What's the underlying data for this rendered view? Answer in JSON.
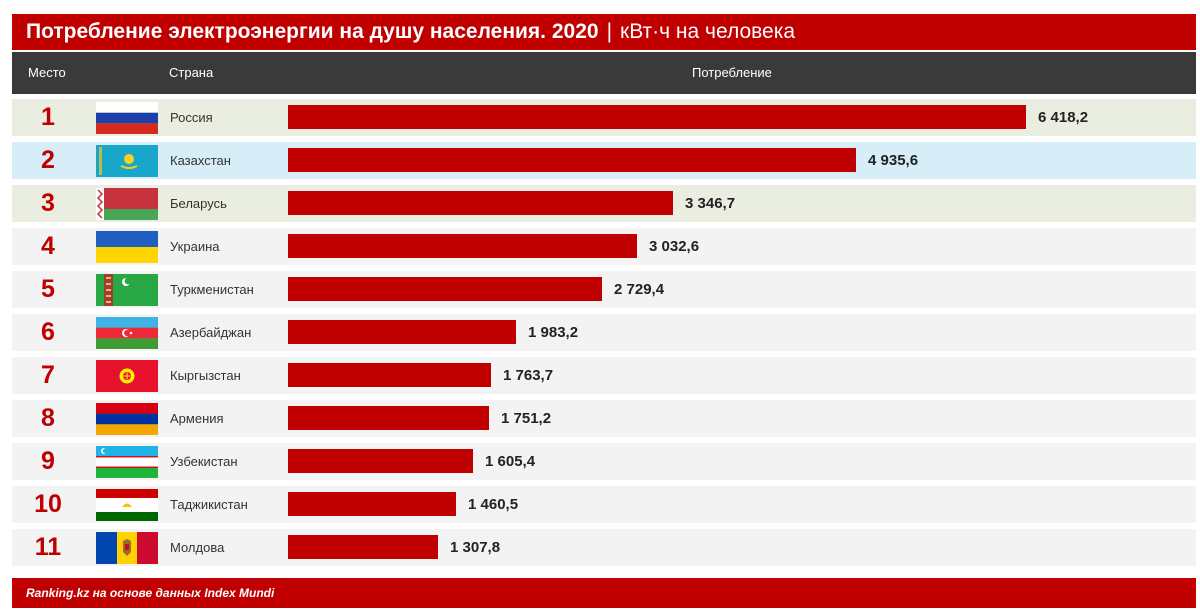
{
  "title": {
    "main": "Потребление электроэнергии на душу населения. 2020",
    "separator": "|",
    "unit": "кВт·ч на человека"
  },
  "header": {
    "rank": "Место",
    "country": "Страна",
    "value": "Потребление"
  },
  "footer": "Ranking.kz на основе данных Index Mundi",
  "colors": {
    "accent": "#c00000",
    "header_bg": "#3a3a3a",
    "row_green": "#e9eee0",
    "row_blue": "#d7edf7",
    "row_grey": "#f3f3f3"
  },
  "chart_data": {
    "type": "bar",
    "orientation": "horizontal",
    "title": "Потребление электроэнергии на душу населения. 2020",
    "unit": "кВт·ч на человека",
    "categories": [
      "Россия",
      "Казахстан",
      "Беларусь",
      "Украина",
      "Туркменистан",
      "Азербайджан",
      "Кыргызстан",
      "Армения",
      "Узбекистан",
      "Таджикистан",
      "Молдова"
    ],
    "ranks": [
      "1",
      "2",
      "3",
      "4",
      "5",
      "6",
      "7",
      "8",
      "9",
      "10",
      "11"
    ],
    "values": [
      6418.2,
      4935.6,
      3346.7,
      3032.6,
      2729.4,
      1983.2,
      1763.7,
      1751.2,
      1605.4,
      1460.5,
      1307.8
    ],
    "value_labels": [
      "6 418,2",
      "4 935,6",
      "3 346,7",
      "3 032,6",
      "2 729,4",
      "1 983,2",
      "1 763,7",
      "1 751,2",
      "1 605,4",
      "1 460,5",
      "1 307,8"
    ],
    "flags": [
      "russia-flag-icon",
      "kazakhstan-flag-icon",
      "belarus-flag-icon",
      "ukraine-flag-icon",
      "turkmenistan-flag-icon",
      "azerbaijan-flag-icon",
      "kyrgyzstan-flag-icon",
      "armenia-flag-icon",
      "uzbekistan-flag-icon",
      "tajikistan-flag-icon",
      "moldova-flag-icon"
    ],
    "row_styles": [
      "green",
      "blue",
      "green",
      "grey",
      "grey",
      "grey",
      "grey",
      "grey",
      "grey",
      "grey",
      "grey"
    ],
    "xlim": [
      0,
      6418.2
    ]
  }
}
